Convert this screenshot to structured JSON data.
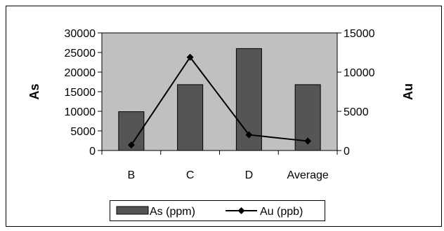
{
  "chart_data": {
    "type": "bar",
    "categories": [
      "B",
      "C",
      "D",
      "Average"
    ],
    "series": [
      {
        "name": "As (ppm)",
        "type": "bar",
        "axis": "left",
        "values": [
          9900,
          16800,
          26000,
          16800
        ],
        "color": "#555555"
      },
      {
        "name": "Au (ppb)",
        "type": "line",
        "axis": "right",
        "values": [
          700,
          11900,
          2000,
          1200
        ],
        "color": "#000000",
        "marker": "diamond"
      }
    ],
    "ylabel": "As",
    "y2label": "Au",
    "ylim": [
      0,
      30000
    ],
    "y2lim": [
      0,
      15000
    ],
    "yticks": [
      "0",
      "5000",
      "10000",
      "15000",
      "20000",
      "25000",
      "30000"
    ],
    "y2ticks": [
      "0",
      "5000",
      "10000",
      "15000"
    ],
    "plot_background": "#c0c0c0",
    "grid": false,
    "legend_position": "bottom"
  }
}
